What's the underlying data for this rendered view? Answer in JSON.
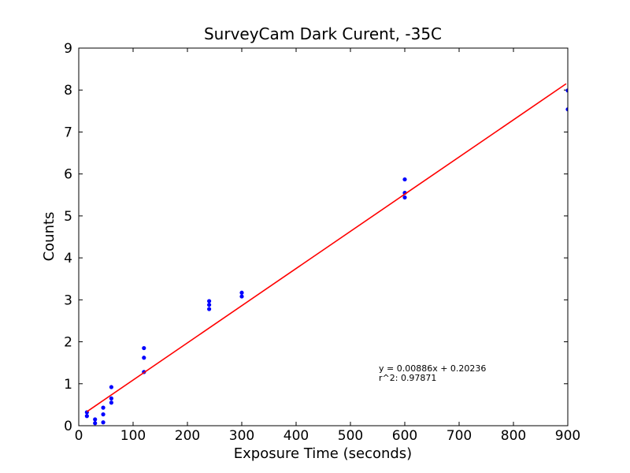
{
  "chart_data": {
    "type": "scatter",
    "title": "SurveyCam Dark Curent, -35C",
    "xlabel": "Exposure Time (seconds)",
    "ylabel": "Counts",
    "xlim": [
      0,
      900
    ],
    "ylim": [
      0,
      9
    ],
    "xticks": [
      0,
      100,
      200,
      300,
      400,
      500,
      600,
      700,
      800,
      900
    ],
    "yticks": [
      0,
      1,
      2,
      3,
      4,
      5,
      6,
      7,
      8,
      9
    ],
    "grid": false,
    "legend_position": "none",
    "marker_color": "#0000ff",
    "axis_color": "#000000",
    "background_color": "#ffffff",
    "points": [
      [
        15,
        0.32
      ],
      [
        15,
        0.23
      ],
      [
        30,
        0.15
      ],
      [
        30,
        0.06
      ],
      [
        45,
        0.43
      ],
      [
        45,
        0.27
      ],
      [
        45,
        0.08
      ],
      [
        60,
        0.92
      ],
      [
        60,
        0.65
      ],
      [
        60,
        0.55
      ],
      [
        120,
        1.85
      ],
      [
        120,
        1.62
      ],
      [
        120,
        1.28
      ],
      [
        240,
        2.97
      ],
      [
        240,
        2.88
      ],
      [
        240,
        2.78
      ],
      [
        300,
        3.17
      ],
      [
        300,
        3.08
      ],
      [
        600,
        5.87
      ],
      [
        600,
        5.55
      ],
      [
        600,
        5.44
      ],
      [
        900,
        7.99
      ],
      [
        900,
        7.54
      ]
    ],
    "fit_line": {
      "slope": 0.00886,
      "intercept": 0.20236,
      "x_start": 15,
      "x_end": 897,
      "color": "#ff0000"
    },
    "annotation": {
      "line1": "y = 0.00886x + 0.20236",
      "line2": "r^2: 0.97871"
    }
  }
}
